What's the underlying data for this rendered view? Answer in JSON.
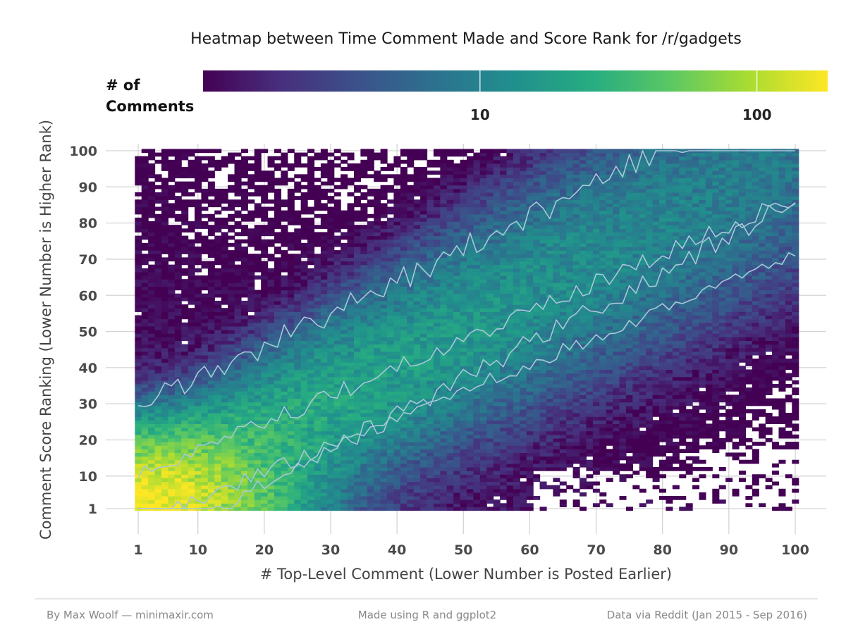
{
  "chart_data": {
    "type": "heatmap",
    "title": "Heatmap between Time Comment Made and Score Rank for /r/gadgets",
    "xlabel": "# Top-Level Comment (Lower Number is Posted Earlier)",
    "ylabel": "Comment Score Ranking (Lower Number is Higher Rank)",
    "x_ticks": [
      1,
      10,
      20,
      30,
      40,
      50,
      60,
      70,
      80,
      90,
      100
    ],
    "y_ticks": [
      1,
      10,
      20,
      30,
      40,
      50,
      60,
      70,
      80,
      90,
      100
    ],
    "x_tick_labels": [
      "1",
      "10",
      "20",
      "30",
      "40",
      "50",
      "60",
      "70",
      "80",
      "90",
      "100"
    ],
    "y_tick_labels": [
      "1",
      "10",
      "20",
      "30",
      "40",
      "50",
      "60",
      "70",
      "80",
      "90",
      "100"
    ],
    "xlim": [
      1,
      100
    ],
    "ylim": [
      1,
      100
    ],
    "grid": true,
    "legend": {
      "title": "# of\nComments",
      "placement": "top",
      "scale": "log",
      "range": [
        1,
        180
      ],
      "ticks": [
        10,
        100
      ],
      "tick_labels": [
        "10",
        "100"
      ],
      "palette": [
        "#440154",
        "#472f7d",
        "#3b528b",
        "#2c728e",
        "#21908d",
        "#27ad81",
        "#5cc863",
        "#aadc32",
        "#fde725"
      ]
    },
    "contour_color": "#a8c8d8",
    "description_of_density": {
      "peak_cell": [
        1,
        1
      ],
      "peak_value": 180,
      "ridge": "diagonal band from (1,1) to (100,100); comment count falls off away from the diagonal",
      "lower_right_empty": "cells near x=100, y<10 are mostly empty"
    }
  },
  "footer": {
    "left": "By Max Woolf — minimaxir.com",
    "center": "Made using R and ggplot2",
    "right": "Data via Reddit (Jan 2015 - Sep 2016)"
  }
}
